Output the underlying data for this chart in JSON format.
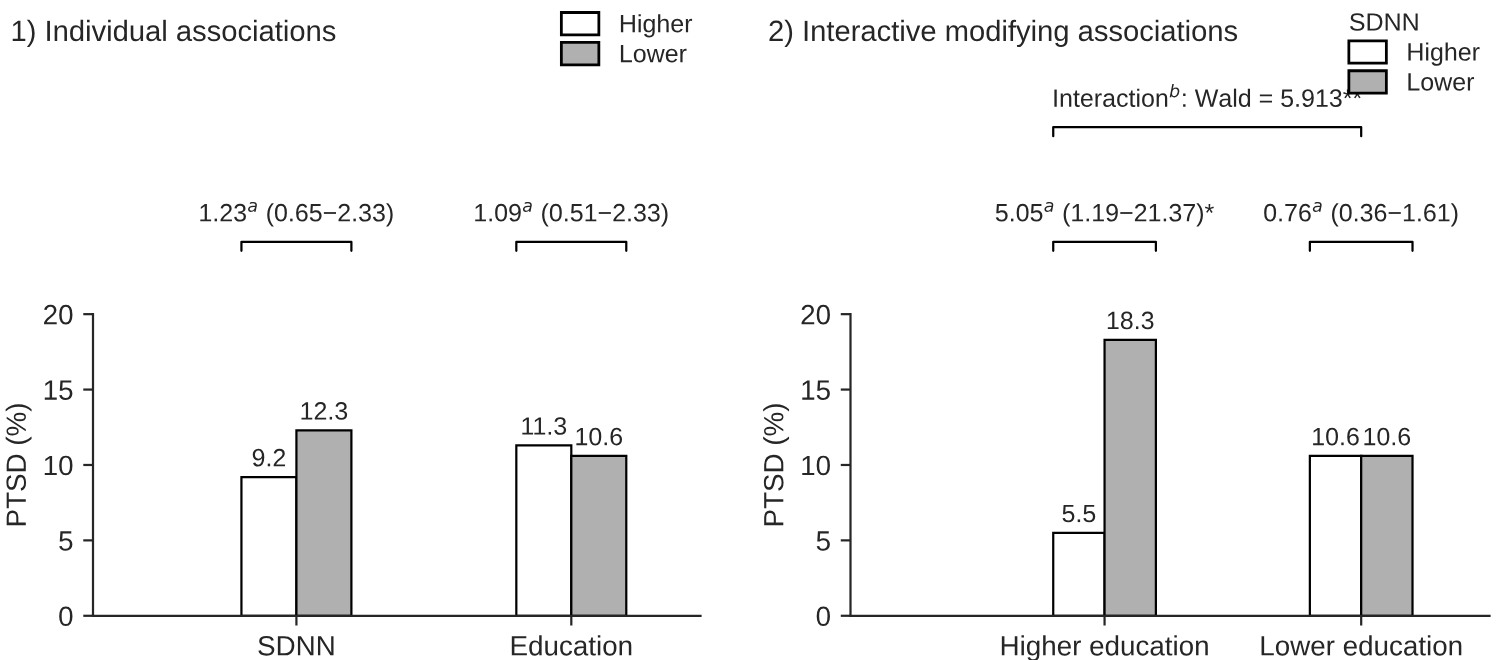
{
  "chart_data": [
    {
      "type": "bar",
      "title": "1) Individual associations",
      "ylabel": "PTSD (%)",
      "categories": [
        "SDNN",
        "Education"
      ],
      "series": [
        {
          "name": "Higher",
          "color": "#ffffff",
          "values": [
            9.2,
            11.3
          ]
        },
        {
          "name": "Lower",
          "color": "#b0b0b0",
          "values": [
            12.3,
            10.6
          ]
        }
      ],
      "ylim": [
        0,
        20
      ],
      "yticks": [
        0,
        5,
        10,
        15,
        20
      ],
      "data_labels": true,
      "legend": "top right",
      "grid": false,
      "annotations": [
        "1.23$^{a}$ (0.65−2.33)",
        "1.09$^{a}$ (0.51−2.33)"
      ]
    },
    {
      "type": "bar",
      "title": "2) Interactive modifying associations",
      "ylabel": "PTSD (%)",
      "legend_title": "SDNN",
      "categories": [
        "Higher education",
        "Lower education"
      ],
      "series": [
        {
          "name": "Higher",
          "color": "#ffffff",
          "values": [
            5.5,
            10.6
          ]
        },
        {
          "name": "Lower",
          "color": "#b0b0b0",
          "values": [
            18.3,
            10.6
          ]
        }
      ],
      "ylim": [
        0,
        20
      ],
      "yticks": [
        0,
        5,
        10,
        15,
        20
      ],
      "data_labels": true,
      "legend": "top right",
      "grid": false,
      "annotations": [
        "Interaction$^{b}$: Wald = 5.913**",
        "5.05$^{a}$ (1.19−21.37)*",
        "0.76$^{a}$ (0.36−1.61)"
      ]
    }
  ]
}
